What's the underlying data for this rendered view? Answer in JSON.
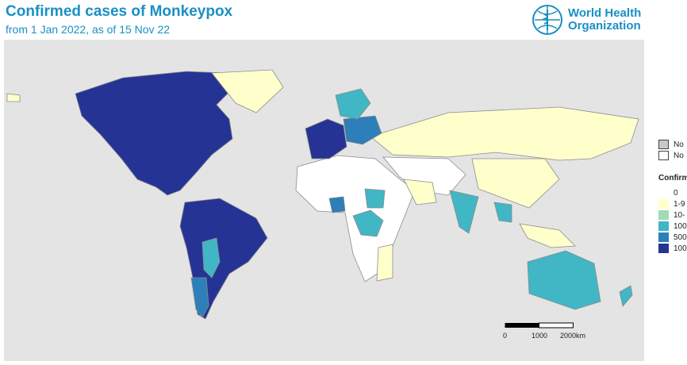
{
  "header": {
    "title": "Confirmed cases of Monkeypox",
    "subtitle": "from 1 Jan 2022, as of 15 Nov 22"
  },
  "logo": {
    "line1": "World Health",
    "line2": "Organization",
    "icon": "who-emblem-icon",
    "color": "#1a8fc4"
  },
  "legend": {
    "special": [
      {
        "label": "No",
        "color": "#c8c8c8"
      },
      {
        "label": "No",
        "color": "#ffffff"
      }
    ],
    "title": "Confirm",
    "items": [
      {
        "label": "0",
        "color": "#ffffff"
      },
      {
        "label": "1-9",
        "color": "#ffffcc"
      },
      {
        "label": "10-",
        "color": "#a1dab4"
      },
      {
        "label": "100",
        "color": "#41b6c4"
      },
      {
        "label": "500",
        "color": "#2c7fb8"
      },
      {
        "label": "100",
        "color": "#253494"
      }
    ]
  },
  "scale_bar": {
    "ticks": [
      "0",
      "1000",
      "2000km"
    ]
  },
  "colors": {
    "ocean": "#e4e4e4",
    "border": "#8c8c8c"
  }
}
